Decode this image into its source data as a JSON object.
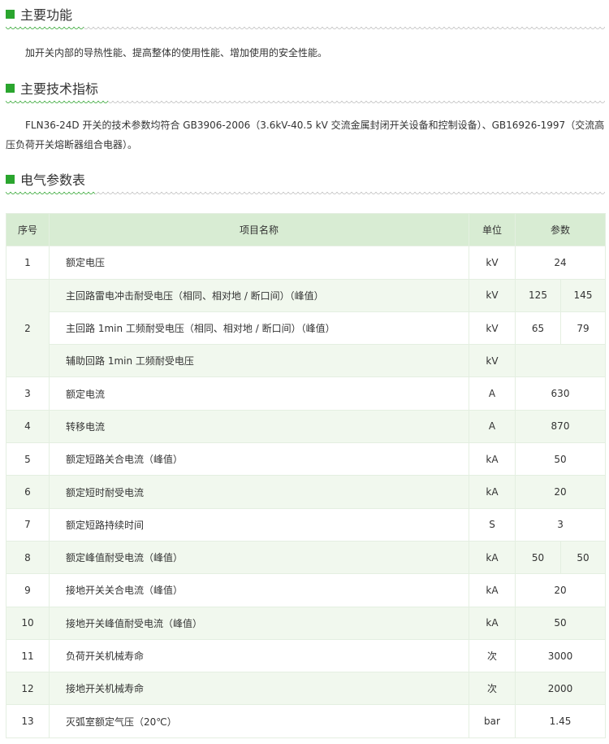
{
  "sections": [
    {
      "title": "主要功能",
      "text": "加开关内部的导热性能、提高整体的使用性能、增加使用的安全性能。"
    },
    {
      "title": "主要技术指标",
      "text": "FLN36-24D 开关的技术参数均符合 GB3906-2006（3.6kV-40.5 kV 交流金属封闭开关设备和控制设备）、GB16926-1997（交流高压负荷开关熔断器组合电器）。"
    },
    {
      "title": "电气参数表"
    }
  ],
  "table": {
    "headers": [
      "序号",
      "项目名称",
      "单位",
      "参数"
    ],
    "rows": [
      {
        "no": "1",
        "items": [
          {
            "name": "额定电压",
            "unit": "kV",
            "values": [
              "24"
            ]
          }
        ]
      },
      {
        "no": "2",
        "items": [
          {
            "name": "主回路雷电冲击耐受电压（相同、相对地 / 断口间）（峰值）",
            "unit": "kV",
            "values": [
              "125",
              "145"
            ]
          },
          {
            "name": "主回路 1min 工频耐受电压（相同、相对地 / 断口间）（峰值）",
            "unit": "kV",
            "values": [
              "65",
              "79"
            ]
          },
          {
            "name": "辅助回路 1min 工频耐受电压",
            "unit": "kV",
            "values": [
              ""
            ]
          }
        ]
      },
      {
        "no": "3",
        "items": [
          {
            "name": "额定电流",
            "unit": "A",
            "values": [
              "630"
            ]
          }
        ]
      },
      {
        "no": "4",
        "items": [
          {
            "name": "转移电流",
            "unit": "A",
            "values": [
              "870"
            ]
          }
        ]
      },
      {
        "no": "5",
        "items": [
          {
            "name": "额定短路关合电流（峰值）",
            "unit": "kA",
            "values": [
              "50"
            ]
          }
        ]
      },
      {
        "no": "6",
        "items": [
          {
            "name": "额定短时耐受电流",
            "unit": "kA",
            "values": [
              "20"
            ]
          }
        ]
      },
      {
        "no": "7",
        "items": [
          {
            "name": "额定短路持续时间",
            "unit": "S",
            "values": [
              "3"
            ]
          }
        ]
      },
      {
        "no": "8",
        "items": [
          {
            "name": "额定峰值耐受电流（峰值）",
            "unit": "kA",
            "values": [
              "50",
              "50"
            ]
          }
        ]
      },
      {
        "no": "9",
        "items": [
          {
            "name": "接地开关关合电流（峰值）",
            "unit": "kA",
            "values": [
              "20"
            ]
          }
        ]
      },
      {
        "no": "10",
        "items": [
          {
            "name": "接地开关峰值耐受电流（峰值）",
            "unit": "kA",
            "values": [
              "50"
            ]
          }
        ]
      },
      {
        "no": "11",
        "items": [
          {
            "name": "负荷开关机械寿命",
            "unit": "次",
            "values": [
              "3000"
            ]
          }
        ]
      },
      {
        "no": "12",
        "items": [
          {
            "name": "接地开关机械寿命",
            "unit": "次",
            "values": [
              "2000"
            ]
          }
        ]
      },
      {
        "no": "13",
        "items": [
          {
            "name": "灭弧室额定气压（20℃）",
            "unit": "bar",
            "values": [
              "1.45"
            ]
          }
        ]
      }
    ]
  },
  "colors": {
    "accent": "#2aa52e",
    "header_bg": "#d8ecd3",
    "stripe_bg": "#f1f8ee"
  }
}
